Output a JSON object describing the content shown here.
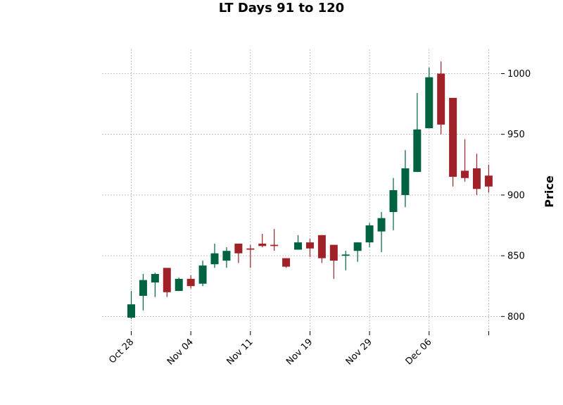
{
  "chart_data": {
    "type": "candlestick",
    "title": "LT Days 91 to 120",
    "xlabel": "",
    "ylabel": "Price",
    "ylim": [
      788,
      1020
    ],
    "yticks": [
      800,
      850,
      900,
      950,
      1000
    ],
    "grid": true,
    "colors": {
      "up": "#006340",
      "down": "#a02128"
    },
    "xticks": [
      {
        "label": "Oct 28",
        "index": 0
      },
      {
        "label": "Nov 04",
        "index": 5
      },
      {
        "label": "Nov 11",
        "index": 10
      },
      {
        "label": "Nov 19",
        "index": 15
      },
      {
        "label": "Nov 29",
        "index": 20
      },
      {
        "label": "Dec 06",
        "index": 25
      },
      {
        "label": "",
        "index": 30
      }
    ],
    "candles": [
      {
        "open": 799,
        "high": 821,
        "low": 798,
        "close": 810
      },
      {
        "open": 817,
        "high": 835,
        "low": 805,
        "close": 830
      },
      {
        "open": 828,
        "high": 836,
        "low": 816,
        "close": 835
      },
      {
        "open": 840,
        "high": 840,
        "low": 816,
        "close": 820
      },
      {
        "open": 821,
        "high": 832,
        "low": 821,
        "close": 831
      },
      {
        "open": 831,
        "high": 834,
        "low": 823,
        "close": 825
      },
      {
        "open": 827,
        "high": 846,
        "low": 825,
        "close": 842
      },
      {
        "open": 843,
        "high": 860,
        "low": 840,
        "close": 852
      },
      {
        "open": 846,
        "high": 857,
        "low": 840,
        "close": 854
      },
      {
        "open": 860,
        "high": 860,
        "low": 844,
        "close": 852
      },
      {
        "open": 856,
        "high": 859,
        "low": 840,
        "close": 855
      },
      {
        "open": 860,
        "high": 868,
        "low": 857,
        "close": 858
      },
      {
        "open": 859,
        "high": 872,
        "low": 854,
        "close": 858
      },
      {
        "open": 848,
        "high": 848,
        "low": 840,
        "close": 841
      },
      {
        "open": 855,
        "high": 867,
        "low": 855,
        "close": 861
      },
      {
        "open": 861,
        "high": 864,
        "low": 849,
        "close": 856
      },
      {
        "open": 867,
        "high": 867,
        "low": 844,
        "close": 848
      },
      {
        "open": 859,
        "high": 859,
        "low": 831,
        "close": 846
      },
      {
        "open": 850,
        "high": 854,
        "low": 838,
        "close": 851
      },
      {
        "open": 854,
        "high": 861,
        "low": 845,
        "close": 861
      },
      {
        "open": 861,
        "high": 877,
        "low": 857,
        "close": 875
      },
      {
        "open": 870,
        "high": 886,
        "low": 853,
        "close": 881
      },
      {
        "open": 886,
        "high": 914,
        "low": 871,
        "close": 904
      },
      {
        "open": 900,
        "high": 937,
        "low": 890,
        "close": 922
      },
      {
        "open": 919,
        "high": 984,
        "low": 919,
        "close": 954
      },
      {
        "open": 955,
        "high": 1005,
        "low": 955,
        "close": 997
      },
      {
        "open": 1000,
        "high": 1010,
        "low": 950,
        "close": 958
      },
      {
        "open": 980,
        "high": 980,
        "low": 907,
        "close": 915
      },
      {
        "open": 920,
        "high": 946,
        "low": 911,
        "close": 914
      },
      {
        "open": 922,
        "high": 934,
        "low": 900,
        "close": 905
      },
      {
        "open": 916,
        "high": 925,
        "low": 902,
        "close": 907
      }
    ]
  }
}
